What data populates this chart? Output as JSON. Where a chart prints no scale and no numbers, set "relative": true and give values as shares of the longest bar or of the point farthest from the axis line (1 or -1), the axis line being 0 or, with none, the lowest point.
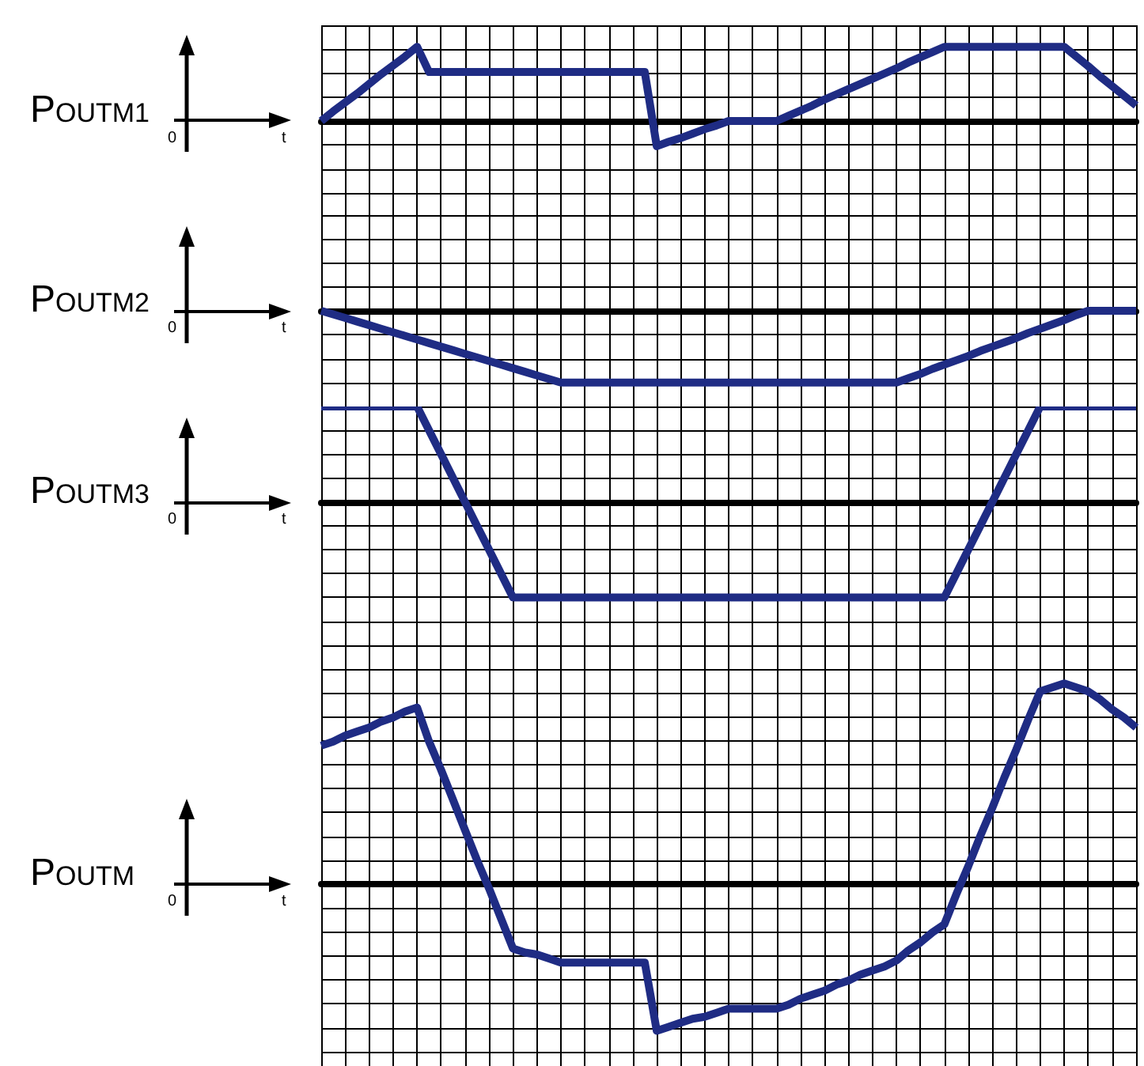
{
  "chart_data": [
    {
      "type": "line",
      "title": "POUTM1",
      "xlabel": "t",
      "annotations": [
        "0"
      ],
      "relative": true,
      "grid": true,
      "color": "#1f2c84",
      "categories": [
        null,
        null,
        null,
        null,
        null,
        null,
        null,
        null,
        null,
        null,
        null,
        null,
        null,
        null,
        null,
        null,
        null,
        null,
        null,
        null,
        null,
        null,
        null,
        null,
        null,
        null,
        null,
        null,
        null,
        null,
        null,
        null,
        null,
        null,
        null,
        null,
        null,
        null,
        null,
        null,
        null,
        null,
        null,
        null,
        null,
        null,
        null,
        null,
        null,
        null,
        null,
        null,
        null,
        null,
        null,
        null,
        null,
        null,
        null,
        null,
        null,
        null,
        null,
        null,
        null,
        null,
        null,
        null,
        null
      ],
      "values": [
        0,
        0.13,
        0.25,
        0.37,
        0.5,
        0.63,
        0.75,
        0.87,
        1,
        0.66,
        0.66,
        0.66,
        0.66,
        0.66,
        0.66,
        0.66,
        0.66,
        0.66,
        0.66,
        0.66,
        0.66,
        0.66,
        0.66,
        0.66,
        0.66,
        0.66,
        0.66,
        0.66,
        -0.34,
        -0.28,
        -0.23,
        -0.17,
        -0.11,
        -0.06,
        0,
        0,
        0,
        0,
        0,
        0.07,
        0.14,
        0.21,
        0.29,
        0.36,
        0.43,
        0.5,
        0.57,
        0.64,
        0.71,
        0.79,
        0.86,
        0.93,
        1,
        1,
        1,
        1,
        1,
        1,
        1,
        1,
        1,
        1,
        1,
        0.87,
        0.74,
        0.6,
        0.47,
        0.34,
        0.21
      ]
    },
    {
      "type": "line",
      "title": "POUTM2",
      "xlabel": "t",
      "annotations": [
        "0"
      ],
      "relative": true,
      "grid": true,
      "color": "#1f2c84",
      "categories": [
        null,
        null,
        null,
        null,
        null,
        null,
        null,
        null,
        null,
        null,
        null,
        null,
        null,
        null,
        null,
        null,
        null,
        null,
        null,
        null,
        null,
        null,
        null,
        null,
        null,
        null,
        null,
        null,
        null,
        null,
        null,
        null,
        null,
        null,
        null,
        null,
        null,
        null,
        null,
        null,
        null,
        null,
        null,
        null,
        null,
        null,
        null,
        null,
        null,
        null,
        null,
        null,
        null,
        null,
        null,
        null,
        null,
        null,
        null,
        null,
        null,
        null,
        null,
        null,
        null,
        null,
        null,
        null,
        null
      ],
      "values": [
        0,
        -0.05,
        -0.1,
        -0.15,
        -0.2,
        -0.25,
        -0.3,
        -0.35,
        -0.4,
        -0.45,
        -0.5,
        -0.55,
        -0.6,
        -0.65,
        -0.7,
        -0.75,
        -0.8,
        -0.85,
        -0.9,
        -0.95,
        -1,
        -1,
        -1,
        -1,
        -1,
        -1,
        -1,
        -1,
        -1,
        -1,
        -1,
        -1,
        -1,
        -1,
        -1,
        -1,
        -1,
        -1,
        -1,
        -1,
        -1,
        -1,
        -1,
        -1,
        -1,
        -1,
        -1,
        -1,
        -1,
        -0.94,
        -0.88,
        -0.81,
        -0.75,
        -0.69,
        -0.63,
        -0.56,
        -0.5,
        -0.44,
        -0.38,
        -0.31,
        -0.25,
        -0.19,
        -0.13,
        -0.06,
        0,
        0,
        0,
        0,
        0
      ]
    },
    {
      "type": "line",
      "title": "POUTM3",
      "xlabel": "t",
      "annotations": [
        "0"
      ],
      "relative": true,
      "grid": true,
      "color": "#1f2c84",
      "categories": [
        null,
        null,
        null,
        null,
        null,
        null,
        null,
        null,
        null,
        null,
        null,
        null,
        null,
        null,
        null,
        null,
        null,
        null,
        null,
        null,
        null,
        null,
        null,
        null,
        null,
        null,
        null,
        null,
        null,
        null,
        null,
        null,
        null,
        null,
        null,
        null,
        null,
        null,
        null,
        null,
        null,
        null,
        null,
        null,
        null,
        null,
        null,
        null,
        null,
        null,
        null,
        null,
        null,
        null,
        null,
        null,
        null,
        null,
        null,
        null,
        null,
        null,
        null,
        null,
        null,
        null,
        null,
        null,
        null
      ],
      "values": [
        1,
        1,
        1,
        1,
        1,
        1,
        1,
        1,
        1,
        0.75,
        0.5,
        0.25,
        0,
        -0.25,
        -0.5,
        -0.75,
        -1,
        -1,
        -1,
        -1,
        -1,
        -1,
        -1,
        -1,
        -1,
        -1,
        -1,
        -1,
        -1,
        -1,
        -1,
        -1,
        -1,
        -1,
        -1,
        -1,
        -1,
        -1,
        -1,
        -1,
        -1,
        -1,
        -1,
        -1,
        -1,
        -1,
        -1,
        -1,
        -1,
        -1,
        -1,
        -1,
        -1,
        -0.75,
        -0.5,
        -0.25,
        0,
        0.25,
        0.5,
        0.75,
        1,
        1,
        1,
        1,
        1,
        1,
        1,
        1,
        1
      ]
    },
    {
      "type": "line",
      "title": "POUTM",
      "xlabel": "t",
      "annotations": [
        "0"
      ],
      "relative": true,
      "grid": true,
      "color": "#1f2c84",
      "categories": [
        null,
        null,
        null,
        null,
        null,
        null,
        null,
        null,
        null,
        null,
        null,
        null,
        null,
        null,
        null,
        null,
        null,
        null,
        null,
        null,
        null,
        null,
        null,
        null,
        null,
        null,
        null,
        null,
        null,
        null,
        null,
        null,
        null,
        null,
        null,
        null,
        null,
        null,
        null,
        null,
        null,
        null,
        null,
        null,
        null,
        null,
        null,
        null,
        null,
        null,
        null,
        null,
        null,
        null,
        null,
        null,
        null,
        null,
        null,
        null,
        null,
        null,
        null,
        null,
        null,
        null,
        null,
        null,
        null
      ],
      "values": [
        0.69,
        0.71,
        0.74,
        0.76,
        0.78,
        0.81,
        0.83,
        0.86,
        0.88,
        0.71,
        0.57,
        0.42,
        0.27,
        0.12,
        -0.02,
        -0.17,
        -0.32,
        -0.34,
        -0.35,
        -0.37,
        -0.39,
        -0.39,
        -0.39,
        -0.39,
        -0.39,
        -0.39,
        -0.39,
        -0.39,
        -0.73,
        -0.71,
        -0.69,
        -0.67,
        -0.66,
        -0.64,
        -0.62,
        -0.62,
        -0.62,
        -0.62,
        -0.62,
        -0.6,
        -0.57,
        -0.55,
        -0.53,
        -0.5,
        -0.48,
        -0.45,
        -0.43,
        -0.41,
        -0.38,
        -0.33,
        -0.29,
        -0.24,
        -0.2,
        -0.05,
        0.09,
        0.24,
        0.38,
        0.53,
        0.67,
        0.82,
        0.96,
        0.98,
        1,
        0.98,
        0.96,
        0.92,
        0.87,
        0.83,
        0.78
      ]
    }
  ]
}
